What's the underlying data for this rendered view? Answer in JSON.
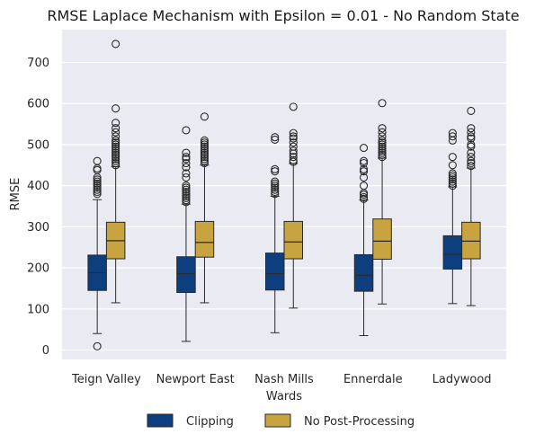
{
  "chart_data": {
    "type": "box",
    "title": "RMSE Laplace Mechanism with Epsilon = 0.01  - No Random State",
    "xlabel": "Wards",
    "ylabel": "RMSE",
    "ylim": [
      -25,
      775
    ],
    "yticks": [
      0,
      100,
      200,
      300,
      400,
      500,
      600,
      700
    ],
    "grid": true,
    "legend_position": "bottom-center",
    "categories": [
      "Teign Valley",
      "Newport East",
      "Nash Mills",
      "Ennerdale",
      "Ladywood"
    ],
    "series": [
      {
        "name": "Clipping",
        "color": "#0d3f7e",
        "boxes": [
          {
            "whislo": 40,
            "q1": 145,
            "med": 188,
            "q3": 231,
            "whishi": 366,
            "fliers": [
              9
            ]
          },
          {
            "whislo": 21,
            "q1": 140,
            "med": 186,
            "q3": 227,
            "whishi": 355,
            "fliers": []
          },
          {
            "whislo": 42,
            "q1": 146,
            "med": 186,
            "q3": 236,
            "whishi": 374,
            "fliers": []
          },
          {
            "whislo": 35,
            "q1": 143,
            "med": 182,
            "q3": 232,
            "whishi": 365,
            "fliers": []
          },
          {
            "whislo": 113,
            "q1": 197,
            "med": 233,
            "q3": 278,
            "whishi": 397,
            "fliers": []
          }
        ]
      },
      {
        "name": "No Post-Processing",
        "color": "#c8a440",
        "boxes": [
          {
            "whislo": 115,
            "q1": 222,
            "med": 266,
            "q3": 311,
            "whishi": 446,
            "fliers": []
          },
          {
            "whislo": 115,
            "q1": 226,
            "med": 262,
            "q3": 313,
            "whishi": 450,
            "fliers": []
          },
          {
            "whislo": 102,
            "q1": 222,
            "med": 263,
            "q3": 313,
            "whishi": 454,
            "fliers": []
          },
          {
            "whislo": 112,
            "q1": 221,
            "med": 265,
            "q3": 319,
            "whishi": 467,
            "fliers": []
          },
          {
            "whislo": 108,
            "q1": 222,
            "med": 265,
            "q3": 311,
            "whishi": 443,
            "fliers": []
          }
        ]
      }
    ],
    "outliers_high": [
      [
        [
          380,
          385,
          390,
          395,
          400,
          405,
          410,
          415,
          420,
          438,
          442,
          460
        ],
        [
          450,
          455,
          460,
          465,
          470,
          475,
          480,
          485,
          490,
          495,
          500,
          505,
          510,
          520,
          530,
          540,
          553,
          588,
          745
        ]
      ],
      [
        [
          360,
          365,
          370,
          375,
          380,
          385,
          390,
          395,
          400,
          420,
          430,
          445,
          455,
          465,
          470,
          480,
          535
        ],
        [
          455,
          460,
          465,
          470,
          475,
          480,
          485,
          490,
          495,
          500,
          505,
          510,
          568
        ]
      ],
      [
        [
          380,
          385,
          390,
          395,
          400,
          405,
          410,
          435,
          440,
          512,
          518
        ],
        [
          458,
          462,
          470,
          478,
          485,
          495,
          505,
          515,
          520,
          528,
          592
        ]
      ],
      [
        [
          368,
          372,
          378,
          382,
          400,
          420,
          435,
          440,
          455,
          460,
          492
        ],
        [
          470,
          475,
          480,
          485,
          490,
          495,
          500,
          505,
          510,
          520,
          530,
          540,
          601
        ]
      ],
      [
        [
          400,
          405,
          410,
          415,
          420,
          425,
          430,
          450,
          470,
          510,
          520,
          528
        ],
        [
          448,
          455,
          460,
          470,
          480,
          495,
          500,
          515,
          520,
          530,
          540,
          582
        ]
      ]
    ]
  }
}
